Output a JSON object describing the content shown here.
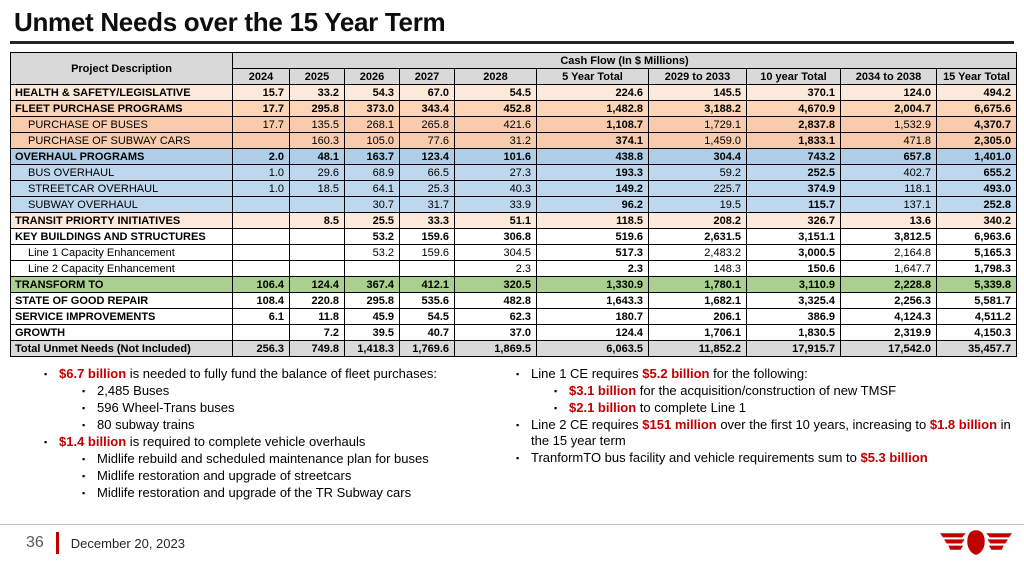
{
  "slide": {
    "title": "Unmet Needs over the 15 Year Term",
    "footer": {
      "page_number": "36",
      "date": "December 20, 2023"
    }
  },
  "icons": {
    "square_bullet": "▪",
    "ttc_logo": "ttc-wings-emblem"
  },
  "colors": {
    "accent_red": "#C00000",
    "header_gray": "#D9D9D9",
    "total_gray": "#D9D9D9",
    "tan": "#FDE9D9",
    "orange_program": "#FBD5B5",
    "orange_sub": "#F8CBAD",
    "blue_program": "#AFCDE7",
    "blue_sub": "#BDD7EE",
    "green": "#A9D08E",
    "footer_line": "#BFBFBF"
  },
  "table": {
    "header": {
      "project_description": "Project Description",
      "cash_flow_title": "Cash Flow (In $ Millions)",
      "columns": [
        "2024",
        "2025",
        "2026",
        "2027",
        "2028",
        "5 Year Total",
        "2029 to 2033",
        "10 year Total",
        "2034 to 2038",
        "15 Year Total"
      ]
    },
    "rows": [
      {
        "label": "HEALTH & SAFETY/LEGISLATIVE",
        "style": "tan",
        "bold": true,
        "indent": false,
        "values": [
          "15.7",
          "33.2",
          "54.3",
          "67.0",
          "54.5",
          "224.6",
          "145.5",
          "370.1",
          "124.0",
          "494.2"
        ]
      },
      {
        "label": "FLEET PURCHASE PROGRAMS",
        "style": "orange",
        "bold": true,
        "indent": false,
        "values": [
          "17.7",
          "295.8",
          "373.0",
          "343.4",
          "452.8",
          "1,482.8",
          "3,188.2",
          "4,670.9",
          "2,004.7",
          "6,675.6"
        ]
      },
      {
        "label": "PURCHASE OF BUSES",
        "style": "orange-sub",
        "bold": false,
        "indent": true,
        "values": [
          "17.7",
          "135.5",
          "268.1",
          "265.8",
          "421.6",
          "1,108.7",
          "1,729.1",
          "2,837.8",
          "1,532.9",
          "4,370.7"
        ]
      },
      {
        "label": "PURCHASE OF SUBWAY CARS",
        "style": "orange-sub",
        "bold": false,
        "indent": true,
        "values": [
          "",
          "160.3",
          "105.0",
          "77.6",
          "31.2",
          "374.1",
          "1,459.0",
          "1,833.1",
          "471.8",
          "2,305.0"
        ]
      },
      {
        "label": "OVERHAUL PROGRAMS",
        "style": "blue",
        "bold": true,
        "indent": false,
        "values": [
          "2.0",
          "48.1",
          "163.7",
          "123.4",
          "101.6",
          "438.8",
          "304.4",
          "743.2",
          "657.8",
          "1,401.0"
        ]
      },
      {
        "label": "BUS OVERHAUL",
        "style": "blue-sub",
        "bold": false,
        "indent": true,
        "values": [
          "1.0",
          "29.6",
          "68.9",
          "66.5",
          "27.3",
          "193.3",
          "59.2",
          "252.5",
          "402.7",
          "655.2"
        ]
      },
      {
        "label": "STREETCAR OVERHAUL",
        "style": "blue-sub",
        "bold": false,
        "indent": true,
        "values": [
          "1.0",
          "18.5",
          "64.1",
          "25.3",
          "40.3",
          "149.2",
          "225.7",
          "374.9",
          "118.1",
          "493.0"
        ]
      },
      {
        "label": "SUBWAY OVERHAUL",
        "style": "blue-sub",
        "bold": false,
        "indent": true,
        "values": [
          "",
          "",
          "30.7",
          "31.7",
          "33.9",
          "96.2",
          "19.5",
          "115.7",
          "137.1",
          "252.8"
        ]
      },
      {
        "label": "TRANSIT PRIORTY INITIATIVES",
        "style": "tan",
        "bold": true,
        "indent": false,
        "values": [
          "",
          "8.5",
          "25.5",
          "33.3",
          "51.1",
          "118.5",
          "208.2",
          "326.7",
          "13.6",
          "340.2"
        ]
      },
      {
        "label": "KEY BUILDINGS AND STRUCTURES",
        "style": "white",
        "bold": true,
        "indent": false,
        "values": [
          "",
          "",
          "53.2",
          "159.6",
          "306.8",
          "519.6",
          "2,631.5",
          "3,151.1",
          "3,812.5",
          "6,963.6"
        ]
      },
      {
        "label": "Line 1 Capacity Enhancement",
        "style": "white",
        "bold": false,
        "indent": true,
        "values": [
          "",
          "",
          "53.2",
          "159.6",
          "304.5",
          "517.3",
          "2,483.2",
          "3,000.5",
          "2,164.8",
          "5,165.3"
        ]
      },
      {
        "label": "Line 2 Capacity Enhancement",
        "style": "white",
        "bold": false,
        "indent": true,
        "values": [
          "",
          "",
          "",
          "",
          "2.3",
          "2.3",
          "148.3",
          "150.6",
          "1,647.7",
          "1,798.3"
        ]
      },
      {
        "label": "TRANSFORM TO",
        "style": "green",
        "bold": true,
        "indent": false,
        "values": [
          "106.4",
          "124.4",
          "367.4",
          "412.1",
          "320.5",
          "1,330.9",
          "1,780.1",
          "3,110.9",
          "2,228.8",
          "5,339.8"
        ]
      },
      {
        "label": "STATE OF GOOD REPAIR",
        "style": "white",
        "bold": true,
        "indent": false,
        "values": [
          "108.4",
          "220.8",
          "295.8",
          "535.6",
          "482.8",
          "1,643.3",
          "1,682.1",
          "3,325.4",
          "2,256.3",
          "5,581.7"
        ]
      },
      {
        "label": "SERVICE IMPROVEMENTS",
        "style": "white",
        "bold": true,
        "indent": false,
        "values": [
          "6.1",
          "11.8",
          "45.9",
          "54.5",
          "62.3",
          "180.7",
          "206.1",
          "386.9",
          "4,124.3",
          "4,511.2"
        ]
      },
      {
        "label": "GROWTH",
        "style": "white",
        "bold": true,
        "indent": false,
        "values": [
          "",
          "7.2",
          "39.5",
          "40.7",
          "37.0",
          "124.4",
          "1,706.1",
          "1,830.5",
          "2,319.9",
          "4,150.3"
        ]
      },
      {
        "label": "Total Unmet Needs (Not Included)",
        "style": "total",
        "bold": true,
        "indent": false,
        "values": [
          "256.3",
          "749.8",
          "1,418.3",
          "1,769.6",
          "1,869.5",
          "6,063.5",
          "11,852.2",
          "17,915.7",
          "17,542.0",
          "35,457.7"
        ]
      }
    ]
  },
  "bullets": {
    "left": [
      {
        "level": 1,
        "segments": [
          {
            "text": "$6.7 billion",
            "red": true
          },
          {
            "text": " is needed to fully fund the balance of fleet purchases:",
            "red": false
          }
        ]
      },
      {
        "level": 2,
        "segments": [
          {
            "text": "2,485 Buses",
            "red": false
          }
        ]
      },
      {
        "level": 2,
        "segments": [
          {
            "text": "596 Wheel-Trans buses",
            "red": false
          }
        ]
      },
      {
        "level": 2,
        "segments": [
          {
            "text": "80 subway trains",
            "red": false
          }
        ]
      },
      {
        "level": 1,
        "segments": [
          {
            "text": "$1.4 billion",
            "red": true
          },
          {
            "text": " is required to complete vehicle overhauls",
            "red": false
          }
        ]
      },
      {
        "level": 2,
        "segments": [
          {
            "text": "Midlife rebuild and scheduled maintenance plan for buses",
            "red": false
          }
        ]
      },
      {
        "level": 2,
        "segments": [
          {
            "text": "Midlife restoration and upgrade of streetcars",
            "red": false
          }
        ]
      },
      {
        "level": 2,
        "segments": [
          {
            "text": "Midlife restoration and upgrade of the TR Subway cars",
            "red": false
          }
        ]
      }
    ],
    "right": [
      {
        "level": 1,
        "segments": [
          {
            "text": "Line 1 CE requires ",
            "red": false
          },
          {
            "text": "$5.2 billion",
            "red": true
          },
          {
            "text": " for the following:",
            "red": false
          }
        ]
      },
      {
        "level": 2,
        "segments": [
          {
            "text": "$3.1 billion",
            "red": true
          },
          {
            "text": " for the acquisition/construction of new TMSF",
            "red": false
          }
        ]
      },
      {
        "level": 2,
        "segments": [
          {
            "text": "$2.1 billion",
            "red": true
          },
          {
            "text": " to complete Line 1",
            "red": false
          }
        ]
      },
      {
        "level": 1,
        "segments": [
          {
            "text": "Line 2 CE requires ",
            "red": false
          },
          {
            "text": "$151 million",
            "red": true
          },
          {
            "text": " over the first 10 years, increasing to ",
            "red": false
          },
          {
            "text": "$1.8 billion",
            "red": true
          },
          {
            "text": " in the 15 year term",
            "red": false
          }
        ]
      },
      {
        "level": 1,
        "segments": [
          {
            "text": "TranformTO bus facility and vehicle requirements sum to ",
            "red": false
          },
          {
            "text": "$5.3 billion",
            "red": true
          }
        ]
      }
    ]
  }
}
